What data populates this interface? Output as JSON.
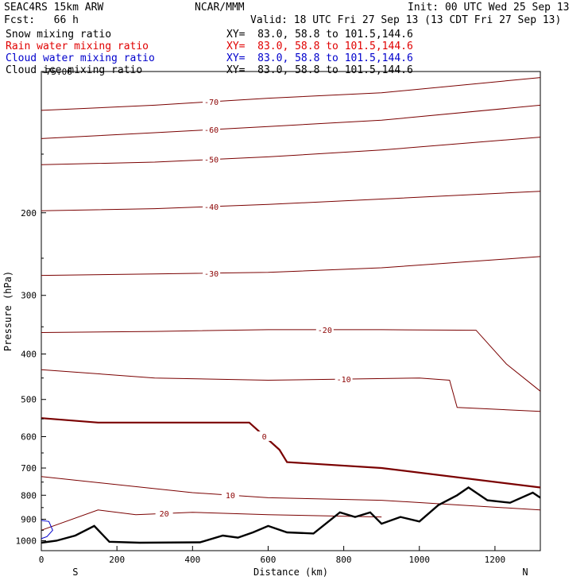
{
  "header": {
    "model": "SEAC4RS 15km ARW",
    "org": "NCAR/MMM",
    "init": "Init: 00 UTC Wed 25 Sep 13",
    "fcst": "Fcst:   66 h",
    "valid": "Valid: 18 UTC Fri 27 Sep 13 (13 CDT Fri 27 Sep 13)",
    "rows": [
      {
        "label": "Snow mixing ratio",
        "xy": "XY=  83.0, 58.8 to 101.5,144.6",
        "color": "#000000"
      },
      {
        "label": "Rain water mixing ratio",
        "xy": "XY=  83.0, 58.8 to 101.5,144.6",
        "color": "#e00000"
      },
      {
        "label": "Cloud water mixing ratio",
        "xy": "XY=  83.0, 58.8 to 101.5,144.6",
        "color": "#0000cc"
      },
      {
        "label": "Cloud ice mixing ratio",
        "xy": "XY=  83.0, 58.8 to 101.5,144.6",
        "color": "#000000"
      }
    ]
  },
  "chart_data": {
    "type": "line",
    "xlabel": "Distance (km)",
    "ylabel": "Pressure (hPa)",
    "xlim": [
      0,
      1320
    ],
    "ylim": [
      1050,
      100
    ],
    "y_scale": "log",
    "x_ticks": [
      "0",
      "200",
      "400",
      "600",
      "800",
      "1000",
      "1200"
    ],
    "y_ticks": [
      "200",
      "300",
      "400",
      "500",
      "600",
      "700",
      "800",
      "900",
      "1000"
    ],
    "end_labels": {
      "left": "S",
      "right": "N"
    },
    "top_label": "-75.06",
    "isotherm_color": "#7a0000",
    "terrain_color": "#000000",
    "series": [
      {
        "name": "-70",
        "x": [
          0,
          300,
          600,
          900,
          1320
        ],
        "y": [
          121,
          118,
          114,
          111,
          103
        ]
      },
      {
        "name": "-60",
        "x": [
          0,
          300,
          600,
          900,
          1320
        ],
        "y": [
          139,
          135,
          131,
          127,
          118
        ]
      },
      {
        "name": "-50",
        "x": [
          0,
          300,
          600,
          900,
          1320
        ],
        "y": [
          158,
          156,
          152,
          147,
          138
        ]
      },
      {
        "name": "-40",
        "x": [
          0,
          300,
          600,
          900,
          1320
        ],
        "y": [
          198,
          196,
          192,
          187,
          180
        ]
      },
      {
        "name": "-30",
        "x": [
          0,
          300,
          600,
          900,
          1320
        ],
        "y": [
          272,
          270,
          268,
          262,
          248
        ]
      },
      {
        "name": "-20",
        "x": [
          0,
          300,
          600,
          900,
          1150,
          1230,
          1320
        ],
        "y": [
          360,
          358,
          355,
          355,
          356,
          420,
          480
        ]
      },
      {
        "name": "-10",
        "x": [
          0,
          300,
          600,
          1000,
          1080,
          1100,
          1320
        ],
        "y": [
          432,
          450,
          455,
          450,
          455,
          520,
          530
        ]
      },
      {
        "name": "0",
        "x": [
          0,
          150,
          550,
          630,
          650,
          900,
          1320
        ],
        "y": [
          548,
          560,
          560,
          640,
          680,
          700,
          770
        ]
      },
      {
        "name": "10",
        "x": [
          0,
          400,
          600,
          900,
          1320
        ],
        "y": [
          730,
          790,
          810,
          820,
          860
        ]
      },
      {
        "name": "20",
        "x": [
          0,
          150,
          250,
          400,
          600,
          900
        ],
        "y": [
          950,
          860,
          880,
          870,
          880,
          890
        ]
      }
    ],
    "terrain": {
      "x": [
        0,
        40,
        90,
        140,
        180,
        260,
        420,
        480,
        520,
        560,
        600,
        650,
        720,
        790,
        830,
        870,
        900,
        950,
        1000,
        1050,
        1100,
        1130,
        1180,
        1240,
        1300,
        1320
      ],
      "y": [
        1010,
        1000,
        975,
        930,
        1005,
        1010,
        1008,
        975,
        985,
        960,
        930,
        960,
        965,
        870,
        890,
        870,
        920,
        890,
        910,
        840,
        800,
        770,
        820,
        830,
        790,
        810
      ]
    },
    "cloud_water": {
      "x": [
        0,
        20,
        30,
        15,
        0
      ],
      "y": [
        905,
        910,
        950,
        980,
        990
      ]
    }
  }
}
